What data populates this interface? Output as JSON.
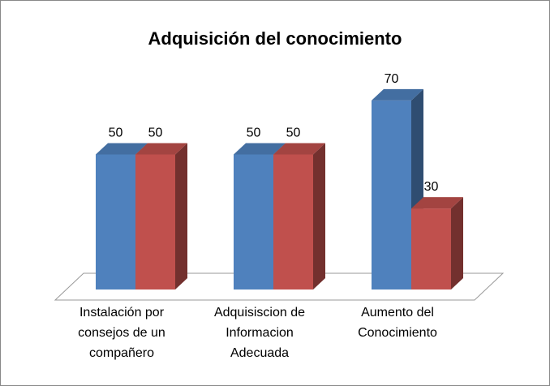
{
  "chart_data": {
    "type": "bar3d",
    "title": "Adquisición del conocimiento",
    "categories": [
      "Instalación por consejos de un compañero",
      "Adquisiscion de Informacion Adecuada",
      "Aumento del Conocimiento"
    ],
    "series": [
      {
        "color": "#4f81bd",
        "values": [
          50,
          50,
          70
        ]
      },
      {
        "color": "#c0504d",
        "values": [
          50,
          50,
          30
        ]
      }
    ]
  }
}
